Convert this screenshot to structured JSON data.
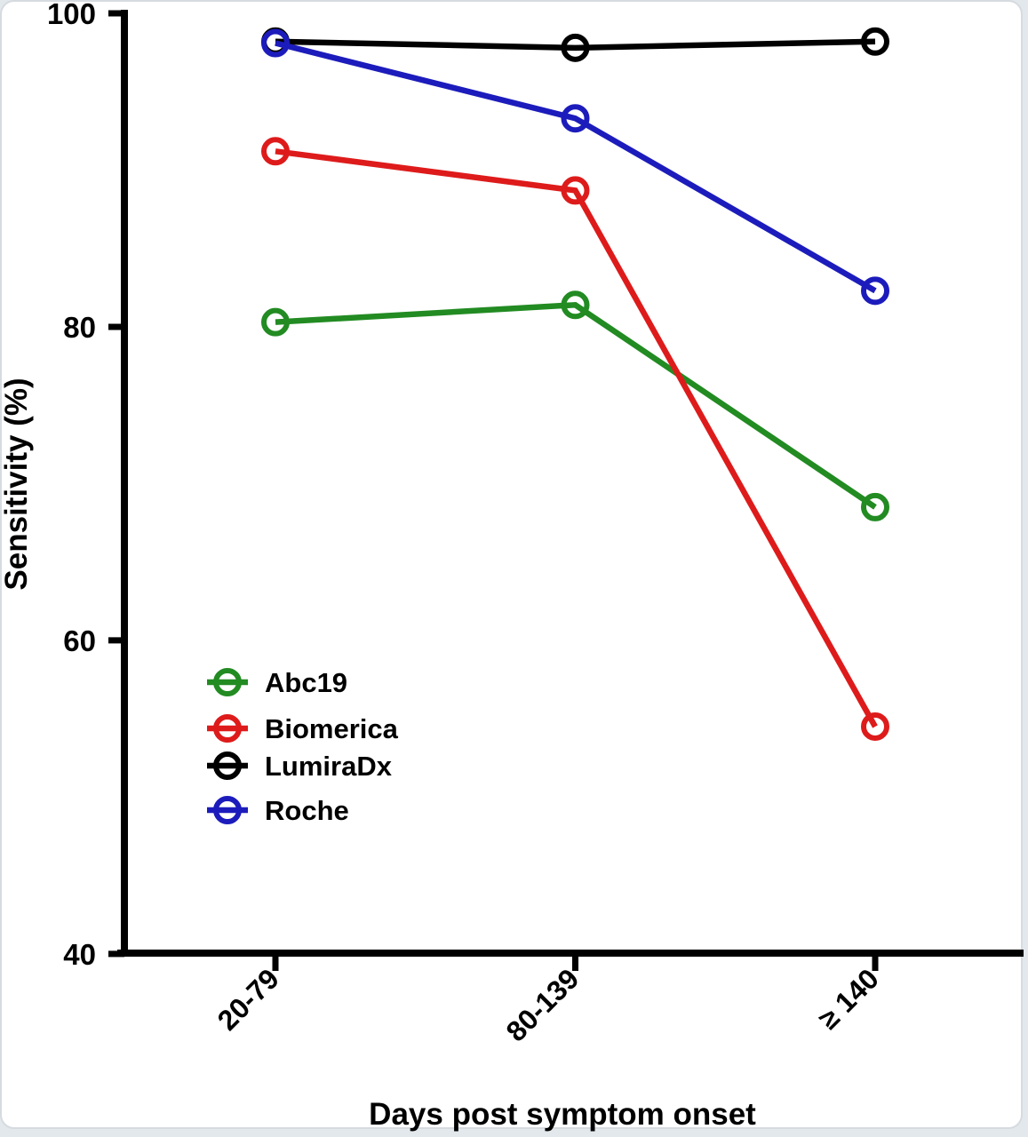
{
  "page": {
    "background_color": "#e3e8ed",
    "card_background": "#ffffff",
    "card_border_color": "#d6dbe0"
  },
  "chart_data": {
    "type": "line",
    "title": "",
    "xlabel": "Days post symptom onset",
    "ylabel": "Sensitivity (%)",
    "categories": [
      "20-79",
      "80-139",
      "≥ 140"
    ],
    "ylim": [
      40,
      100
    ],
    "yticks": [
      100,
      80,
      60,
      40
    ],
    "grid": false,
    "marker": "open-circle",
    "legend_position": "inside-lower-left",
    "series": [
      {
        "name": "Abc19",
        "color": "#228B22",
        "values": [
          80.3,
          81.4,
          68.5
        ]
      },
      {
        "name": "Biomerica",
        "color": "#DE1B1B",
        "values": [
          91.2,
          88.7,
          54.5
        ]
      },
      {
        "name": "LumiraDx",
        "color": "#000000",
        "values": [
          98.2,
          97.8,
          98.2
        ]
      },
      {
        "name": "Roche",
        "color": "#1C1CBC",
        "values": [
          98.1,
          93.3,
          82.3
        ]
      }
    ],
    "legend": [
      "Abc19",
      "Biomerica",
      "LumiraDx",
      "Roche"
    ]
  }
}
